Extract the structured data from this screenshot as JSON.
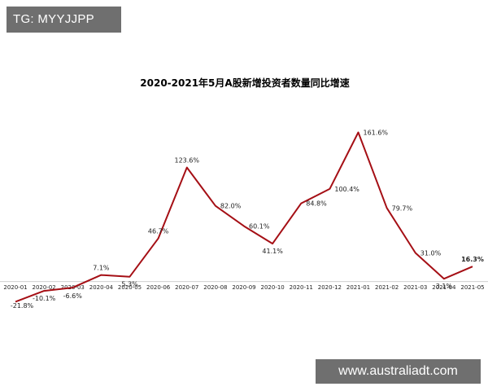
{
  "watermarks": {
    "top_label": "TG: MYYJJPP",
    "bottom_label": "www.australiadt.com"
  },
  "chart_data": {
    "type": "line",
    "title": "2020-2021年5月A股新增投资者数量同比增速",
    "xlabel": "",
    "ylabel": "",
    "categories": [
      "2020-01",
      "2020-02",
      "2020-03",
      "2020-04",
      "2020-05",
      "2020-06",
      "2020-07",
      "2020-08",
      "2020-09",
      "2020-10",
      "2020-11",
      "2020-12",
      "2021-01",
      "2021-02",
      "2021-03",
      "2021-04",
      "2021-05"
    ],
    "series": [
      {
        "values": [
          -21.8,
          -10.1,
          -6.6,
          7.1,
          5.3,
          46.7,
          123.6,
          82.0,
          60.1,
          41.1,
          84.8,
          100.4,
          161.6,
          79.7,
          31.0,
          3.1,
          16.3
        ],
        "labels": [
          "-21.8%",
          "-10.1%",
          "-6.6%",
          "7.1%",
          "5.3%",
          "46.7%",
          "123.6%",
          "82.0%",
          "60.1%",
          "41.1%",
          "84.8%",
          "100.4%",
          "161.6%",
          "79.7%",
          "31.0%",
          "3.1%",
          "16.3%"
        ],
        "color": "#a50f15"
      }
    ],
    "label_position": [
      "below",
      "below",
      "below",
      "above",
      "below",
      "above",
      "above",
      "right",
      "right",
      "below",
      "right",
      "right",
      "right",
      "right",
      "right",
      "below",
      "above"
    ],
    "highlight_last_label": true,
    "ylim": [
      -25,
      170
    ],
    "baseline": 0,
    "grid": false,
    "legend": "none"
  }
}
